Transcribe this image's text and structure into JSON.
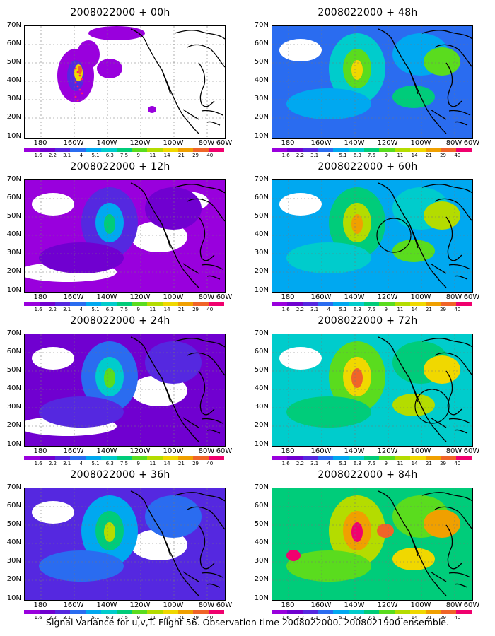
{
  "caption": "Signal Variance for u,v,T. Flight 56. Observation time 2008022000. 2008021900 ensemble.",
  "lat_labels": [
    "70N",
    "60N",
    "50N",
    "40N",
    "30N",
    "20N",
    "10N"
  ],
  "lon_labels": [
    "180",
    "160W",
    "140W",
    "120W",
    "100W",
    "80W",
    "60W"
  ],
  "colorbar": {
    "labels": [
      "1.6",
      "2.2",
      "3.1",
      "4",
      "5.1",
      "6.3",
      "7.5",
      "9",
      "11",
      "14",
      "21",
      "29",
      "40"
    ],
    "colors": [
      "#9900dd",
      "#7000d0",
      "#5528e0",
      "#2a6cf0",
      "#00a8f0",
      "#00cccc",
      "#00cc7a",
      "#5adc1e",
      "#b4dc00",
      "#f0d800",
      "#f0a000",
      "#f06428",
      "#f0006e"
    ]
  },
  "panels": [
    {
      "title": "2008022000 + 00h",
      "intensity": 0
    },
    {
      "title": "2008022000 + 12h",
      "intensity": 1
    },
    {
      "title": "2008022000 + 24h",
      "intensity": 2
    },
    {
      "title": "2008022000 + 36h",
      "intensity": 3
    },
    {
      "title": "2008022000 + 48h",
      "intensity": 4
    },
    {
      "title": "2008022000 + 60h",
      "intensity": 5
    },
    {
      "title": "2008022000 + 72h",
      "intensity": 6
    },
    {
      "title": "2008022000 + 84h",
      "intensity": 7
    }
  ]
}
